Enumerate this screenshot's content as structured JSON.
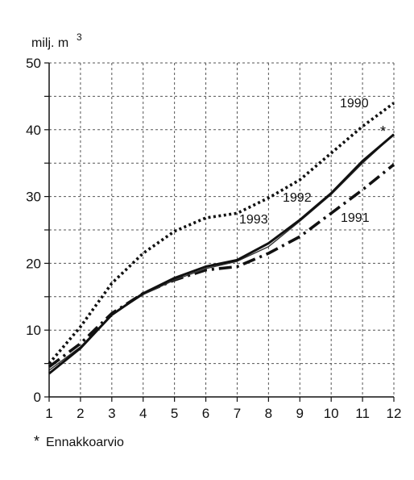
{
  "chart_data": {
    "type": "line",
    "unit_label": "milj. m",
    "unit_superscript": "3",
    "footnote_marker": "*",
    "footnote_text": "Ennakkoarvio",
    "x": [
      1,
      2,
      3,
      4,
      5,
      6,
      7,
      8,
      9,
      10,
      11,
      12
    ],
    "xlim": [
      1,
      12
    ],
    "ylim": [
      0,
      50
    ],
    "yticks": [
      0,
      10,
      20,
      30,
      40,
      50
    ],
    "grid": true,
    "series": [
      {
        "name": "1990",
        "style": "dotted",
        "values": [
          5.0,
          10.5,
          17.0,
          21.5,
          24.8,
          26.8,
          27.5,
          29.8,
          32.5,
          36.5,
          40.5,
          44.0
        ]
      },
      {
        "name": "1991",
        "style": "dashdot",
        "values": [
          4.5,
          8.0,
          12.5,
          15.5,
          17.5,
          19.0,
          19.5,
          21.5,
          24.0,
          27.5,
          31.0,
          34.8
        ]
      },
      {
        "name": "1992",
        "style": "solid-thin",
        "values": [
          4.0,
          7.5,
          12.3,
          15.3,
          17.5,
          19.2,
          20.3,
          22.5,
          26.3,
          30.3,
          35.0,
          39.3
        ]
      },
      {
        "name": "1993",
        "style": "solid",
        "values": [
          3.5,
          7.3,
          12.3,
          15.5,
          17.8,
          19.5,
          20.5,
          23.0,
          26.5,
          30.5,
          35.3,
          39.3
        ]
      }
    ],
    "labels": [
      {
        "series": "1990",
        "text": "1990"
      },
      {
        "series": "1992",
        "text": "1992"
      },
      {
        "series": "1993",
        "text": "1993"
      },
      {
        "series": "1991",
        "text": "1991"
      }
    ]
  }
}
